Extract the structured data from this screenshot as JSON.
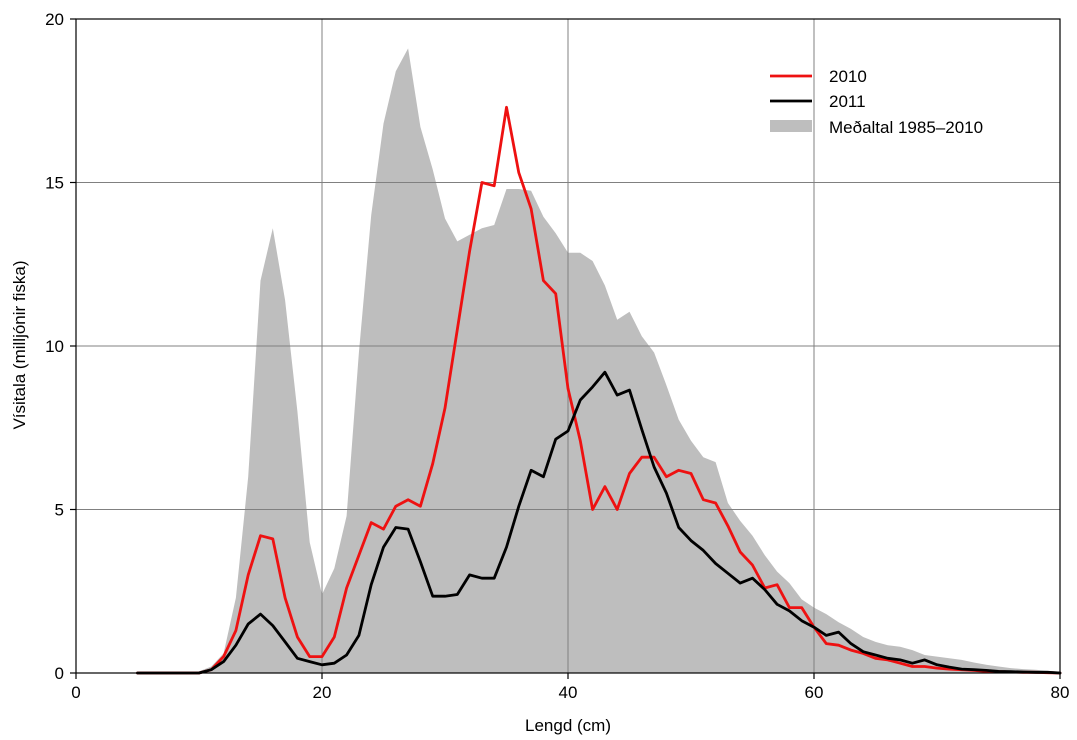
{
  "chart_data": {
    "type": "line",
    "xlabel": "Lengd (cm)",
    "ylabel": "Vísitala (milljónir fiska)",
    "xlim": [
      0,
      80
    ],
    "ylim": [
      0,
      20
    ],
    "xticks": [
      0,
      20,
      40,
      60,
      80
    ],
    "yticks": [
      0,
      5,
      10,
      15,
      20
    ],
    "xtick_labels": [
      "0",
      "20",
      "40",
      "60",
      "80"
    ],
    "ytick_labels": [
      "0",
      "5",
      "10",
      "15",
      "20"
    ],
    "grid": true,
    "legend_position": "top-right",
    "colors": {
      "s2010": "#ee1111",
      "s2011": "#000000",
      "avg": "#bebebe"
    },
    "series": [
      {
        "name": "2010",
        "type": "line",
        "x": [
          5,
          6,
          7,
          8,
          9,
          10,
          11,
          12,
          13,
          14,
          15,
          16,
          17,
          18,
          19,
          20,
          21,
          22,
          23,
          24,
          25,
          26,
          27,
          28,
          29,
          30,
          31,
          32,
          33,
          34,
          35,
          36,
          37,
          38,
          39,
          40,
          41,
          42,
          43,
          44,
          45,
          46,
          47,
          48,
          49,
          50,
          51,
          52,
          53,
          54,
          55,
          56,
          57,
          58,
          59,
          60,
          61,
          62,
          63,
          64,
          65,
          66,
          67,
          68,
          69,
          70,
          71,
          72,
          73,
          74,
          75,
          76,
          77,
          78,
          79,
          80
        ],
        "values": [
          0,
          0,
          0,
          0,
          0,
          0,
          0.1,
          0.5,
          1.3,
          3.0,
          4.2,
          4.1,
          2.3,
          1.1,
          0.5,
          0.5,
          1.1,
          2.6,
          3.6,
          4.6,
          4.4,
          5.1,
          5.3,
          5.1,
          6.4,
          8.1,
          10.5,
          12.9,
          15.0,
          14.9,
          17.3,
          15.3,
          14.2,
          12.0,
          11.6,
          8.7,
          7.1,
          5.0,
          5.7,
          5.0,
          6.1,
          6.6,
          6.6,
          6.0,
          6.2,
          6.1,
          5.3,
          5.2,
          4.5,
          3.7,
          3.3,
          2.6,
          2.7,
          2.0,
          2.0,
          1.4,
          0.9,
          0.85,
          0.7,
          0.6,
          0.45,
          0.4,
          0.3,
          0.2,
          0.2,
          0.15,
          0.12,
          0.1,
          0.08,
          0.05,
          0.04,
          0.03,
          0.02,
          0.02,
          0.01,
          0
        ]
      },
      {
        "name": "2011",
        "type": "line",
        "x": [
          5,
          6,
          7,
          8,
          9,
          10,
          11,
          12,
          13,
          14,
          15,
          16,
          17,
          18,
          19,
          20,
          21,
          22,
          23,
          24,
          25,
          26,
          27,
          28,
          29,
          30,
          31,
          32,
          33,
          34,
          35,
          36,
          37,
          38,
          39,
          40,
          41,
          42,
          43,
          44,
          45,
          46,
          47,
          48,
          49,
          50,
          51,
          52,
          53,
          54,
          55,
          56,
          57,
          58,
          59,
          60,
          61,
          62,
          63,
          64,
          65,
          66,
          67,
          68,
          69,
          70,
          71,
          72,
          73,
          74,
          75,
          76,
          77,
          78,
          79,
          80
        ],
        "values": [
          0,
          0,
          0,
          0,
          0,
          0,
          0.1,
          0.35,
          0.85,
          1.5,
          1.8,
          1.45,
          0.95,
          0.45,
          0.35,
          0.25,
          0.3,
          0.55,
          1.15,
          2.7,
          3.85,
          4.45,
          4.4,
          3.4,
          2.35,
          2.35,
          2.4,
          3.0,
          2.9,
          2.9,
          3.85,
          5.1,
          6.2,
          6.0,
          7.15,
          7.4,
          8.35,
          8.75,
          9.2,
          8.5,
          8.65,
          7.45,
          6.3,
          5.5,
          4.45,
          4.05,
          3.75,
          3.35,
          3.05,
          2.75,
          2.9,
          2.55,
          2.1,
          1.9,
          1.6,
          1.4,
          1.15,
          1.25,
          0.9,
          0.65,
          0.55,
          0.45,
          0.4,
          0.3,
          0.4,
          0.25,
          0.18,
          0.12,
          0.1,
          0.08,
          0.05,
          0.04,
          0.03,
          0.02,
          0.02,
          0
        ]
      },
      {
        "name": "Meðaltal 1985–2010",
        "type": "area",
        "x": [
          5,
          6,
          7,
          8,
          9,
          10,
          11,
          12,
          13,
          14,
          15,
          16,
          17,
          18,
          19,
          20,
          21,
          22,
          23,
          24,
          25,
          26,
          27,
          28,
          29,
          30,
          31,
          32,
          33,
          34,
          35,
          36,
          37,
          38,
          39,
          40,
          41,
          42,
          43,
          44,
          45,
          46,
          47,
          48,
          49,
          50,
          51,
          52,
          53,
          54,
          55,
          56,
          57,
          58,
          59,
          60,
          61,
          62,
          63,
          64,
          65,
          66,
          67,
          68,
          69,
          70,
          71,
          72,
          73,
          74,
          75,
          76,
          77,
          78,
          79,
          80
        ],
        "values": [
          0,
          0,
          0,
          0,
          0,
          0.05,
          0.2,
          0.6,
          2.3,
          6.0,
          12.0,
          13.6,
          11.4,
          8.0,
          4.0,
          2.4,
          3.2,
          4.8,
          9.8,
          14.0,
          16.8,
          18.4,
          19.1,
          16.7,
          15.4,
          13.9,
          13.2,
          13.4,
          13.6,
          13.7,
          14.8,
          14.8,
          14.75,
          13.95,
          13.45,
          12.85,
          12.85,
          12.6,
          11.85,
          10.8,
          11.05,
          10.3,
          9.8,
          8.8,
          7.75,
          7.1,
          6.6,
          6.45,
          5.2,
          4.65,
          4.2,
          3.6,
          3.1,
          2.75,
          2.25,
          2.0,
          1.8,
          1.55,
          1.35,
          1.1,
          0.95,
          0.85,
          0.8,
          0.7,
          0.55,
          0.5,
          0.45,
          0.4,
          0.32,
          0.25,
          0.2,
          0.15,
          0.12,
          0.1,
          0.07,
          0.04
        ]
      }
    ]
  }
}
